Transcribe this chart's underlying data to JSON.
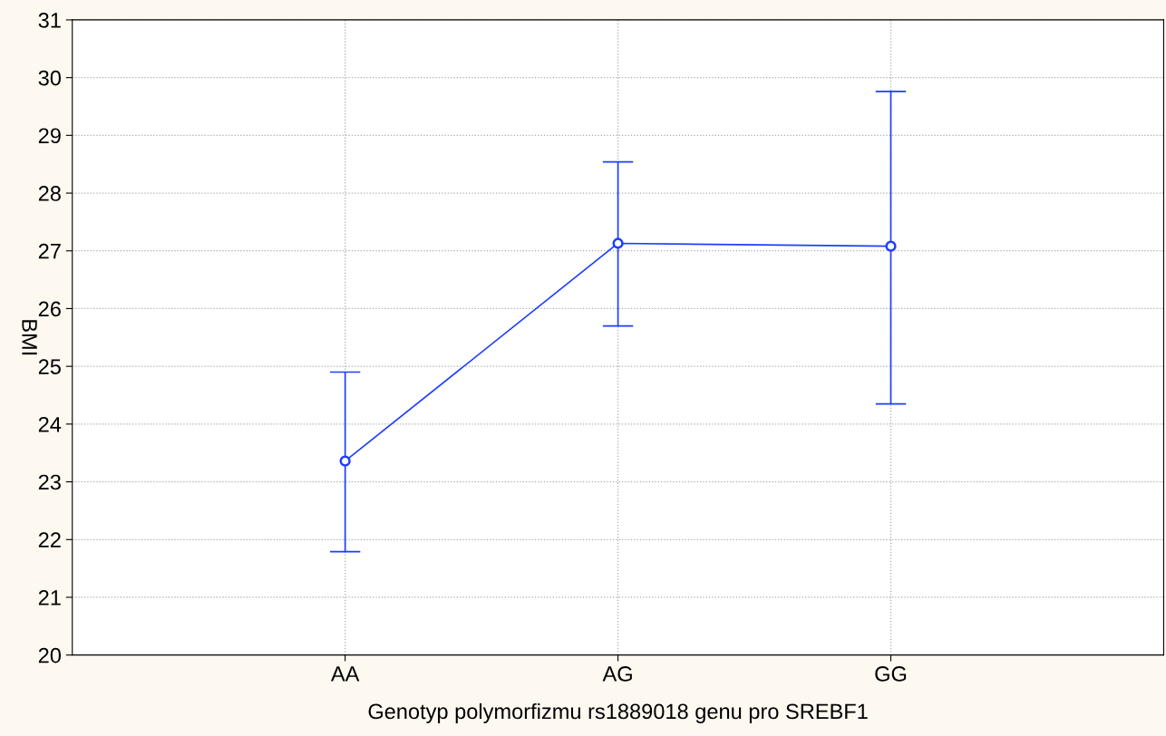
{
  "chart_data": {
    "type": "line",
    "xlabel": "Genotyp polymorfizmu rs1889018 genu pro SREBF1",
    "ylabel": "BMI",
    "categories": [
      "AA",
      "AG",
      "GG"
    ],
    "series": [
      {
        "color": "#1f3dff",
        "values": [
          23.36,
          27.13,
          27.08
        ],
        "errors": [
          [
            21.79,
            24.9
          ],
          [
            25.7,
            28.54
          ],
          [
            24.35,
            29.76
          ]
        ]
      }
    ],
    "ylim": [
      20,
      31
    ],
    "yticks": [
      20,
      21,
      22,
      23,
      24,
      25,
      26,
      27,
      28,
      29,
      30,
      31
    ],
    "grid": true,
    "marker": "circle",
    "line_style": "solid",
    "legend": false
  }
}
